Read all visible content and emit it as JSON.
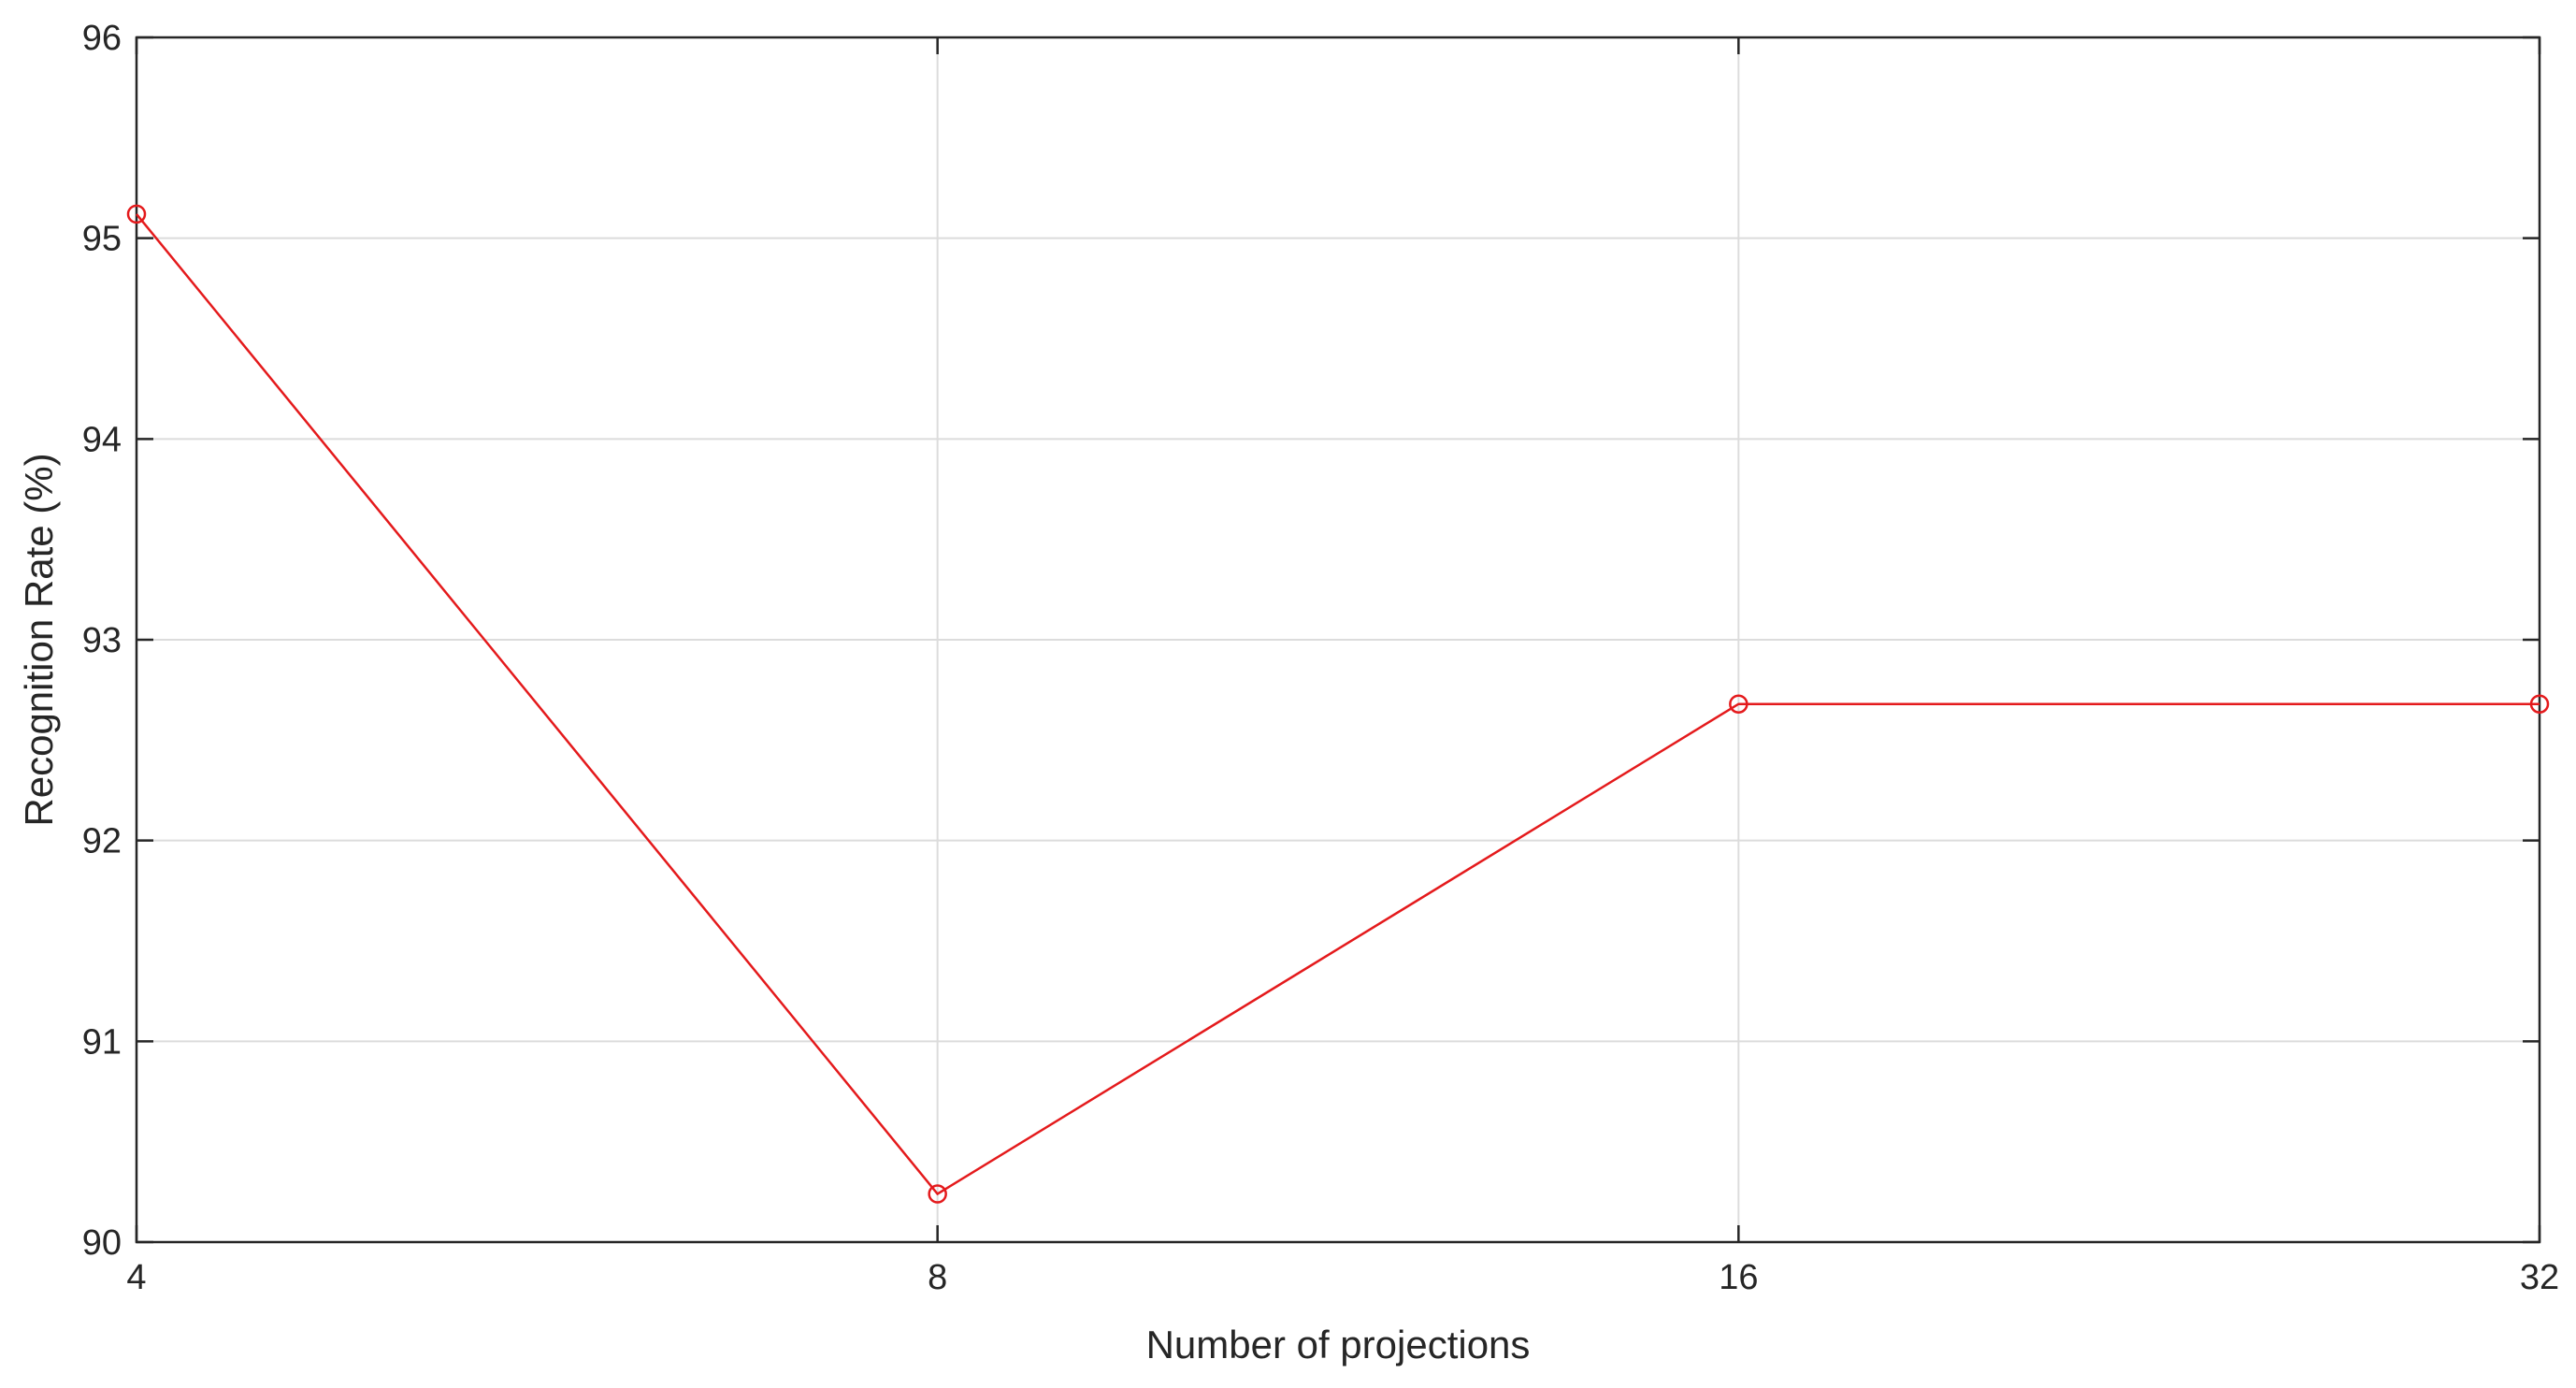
{
  "chart_data": {
    "type": "line",
    "title": "",
    "xlabel": "Number of projections",
    "ylabel": "Recognition Rate (%)",
    "x_scale": "log2",
    "x_ticks": [
      4,
      8,
      16,
      32
    ],
    "x_tick_labels": [
      "4",
      "8",
      "16",
      "32"
    ],
    "xlim": [
      4,
      32
    ],
    "y_ticks": [
      90,
      91,
      92,
      93,
      94,
      95,
      96
    ],
    "y_tick_labels": [
      "90",
      "91",
      "92",
      "93",
      "94",
      "95",
      "96"
    ],
    "ylim": [
      90,
      96
    ],
    "grid": true,
    "legend": "none",
    "series": [
      {
        "color": "#e41a1c",
        "marker": "circle",
        "x": [
          4,
          8,
          16,
          32
        ],
        "y": [
          95.12,
          90.24,
          92.68,
          92.68
        ]
      }
    ]
  }
}
